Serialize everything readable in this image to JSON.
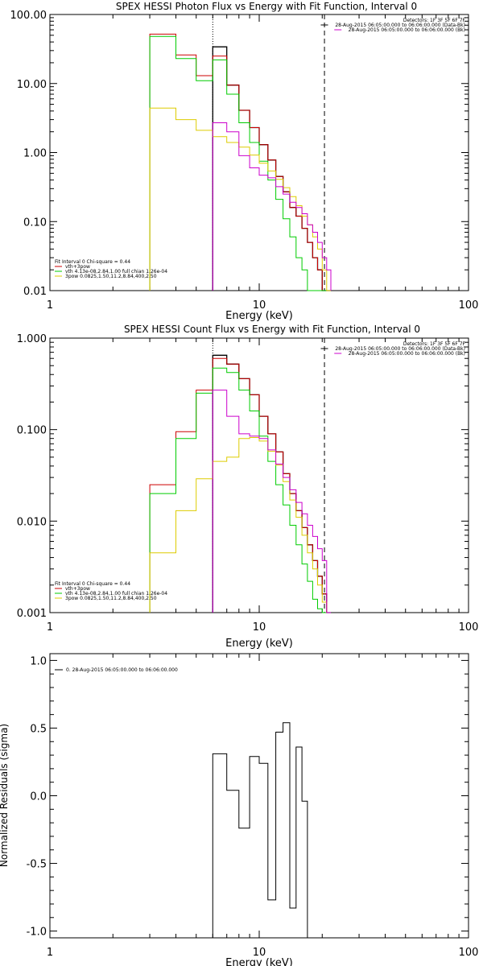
{
  "chart_data": [
    {
      "type": "line",
      "title": "SPEX HESSI Photon Flux vs Energy with Fit Function, Interval 0",
      "xlabel": "Energy (keV)",
      "ylabel": "",
      "xscale": "log",
      "yscale": "log",
      "xlim": [
        1,
        100
      ],
      "ylim": [
        0.01,
        100
      ],
      "x_ticks": [
        1,
        10,
        100
      ],
      "x_tick_labels": [
        "1",
        "10",
        "100"
      ],
      "y_ticks": [
        0.01,
        0.1,
        1,
        10,
        100
      ],
      "y_tick_labels": [
        "0.01",
        "0.10",
        "1.00",
        "10.00",
        "100.00"
      ],
      "ref_lines": [
        {
          "x": 6.0,
          "style": "dotted",
          "color": "#000000"
        },
        {
          "x": 20.5,
          "style": "dashed",
          "color": "#000000"
        },
        {
          "x": 6.0,
          "style": "solid",
          "color": "#cc00cc"
        }
      ],
      "series": [
        {
          "color": "#000000",
          "edges": [
            6,
            7,
            8,
            9,
            10,
            11,
            12,
            13,
            14,
            15,
            16,
            17,
            18,
            19,
            20,
            21,
            22
          ],
          "values": [
            34,
            9.5,
            4.1,
            2.3,
            1.3,
            0.78,
            0.45,
            0.27,
            0.16,
            0.12,
            0.08,
            0.05,
            0.03,
            0.02,
            0.01,
            0.01
          ]
        },
        {
          "color": "#cc0000",
          "edges": [
            3,
            4,
            5,
            6,
            7,
            8,
            9,
            10,
            11,
            12,
            13,
            14,
            15,
            16,
            17,
            18,
            19,
            20,
            21,
            22
          ],
          "values": [
            52,
            26,
            13,
            25,
            9.5,
            4.1,
            2.3,
            1.3,
            0.78,
            0.45,
            0.27,
            0.16,
            0.12,
            0.08,
            0.05,
            0.03,
            0.02,
            0.01,
            0.01
          ]
        },
        {
          "color": "#00cc00",
          "edges": [
            3,
            4,
            5,
            6,
            7,
            8,
            9,
            10,
            11,
            12,
            13,
            14,
            15,
            16,
            17,
            18,
            19,
            20,
            21,
            22
          ],
          "values": [
            48,
            23,
            11,
            22,
            7.0,
            2.7,
            1.4,
            0.75,
            0.4,
            0.21,
            0.11,
            0.06,
            0.03,
            0.02,
            0.01,
            0.01,
            0.01,
            0.01,
            0.01
          ]
        },
        {
          "color": "#ddcc00",
          "edges": [
            3,
            4,
            5,
            6,
            7,
            8,
            9,
            10,
            11,
            12,
            13,
            14,
            15,
            16,
            17,
            18,
            19,
            20,
            21,
            22
          ],
          "values": [
            4.4,
            3.0,
            2.1,
            1.7,
            1.4,
            1.2,
            0.92,
            0.7,
            0.54,
            0.41,
            0.31,
            0.23,
            0.17,
            0.12,
            0.09,
            0.06,
            0.04,
            0.02,
            0.01
          ]
        },
        {
          "color": "#cc00cc",
          "edges": [
            6,
            7,
            8,
            9,
            10,
            11,
            12,
            13,
            14,
            15,
            16,
            17,
            18,
            19,
            20,
            21,
            22
          ],
          "values": [
            2.7,
            2.0,
            0.9,
            0.6,
            0.47,
            0.43,
            0.32,
            0.25,
            0.19,
            0.16,
            0.13,
            0.09,
            0.07,
            0.05,
            0.03,
            0.02
          ]
        }
      ],
      "legend": [
        {
          "text": "Detectors: 1F 3F 5F 6F 7F",
          "color": "",
          "line": false
        },
        {
          "text": "28-Aug-2015 06:05:00.000 to 06:06:00.000 (Data-Bk)",
          "color": "#000000",
          "line": true
        },
        {
          "text": "28-Aug-2015 06:05:00.000 to 06:06:00.000 (Bk)",
          "color": "#cc00cc",
          "line": true
        }
      ],
      "legend_position": "top-right",
      "fit_legend": [
        {
          "text": "Fit Interval 0   Chi-square = 0.44",
          "color": "",
          "line": false
        },
        {
          "text": "vth+3pow",
          "color": "#cc0000",
          "line": true
        },
        {
          "text": "vth 4.13e-08,2.84,1.00  full chian 1.26e-04",
          "color": "#00cc00",
          "line": true
        },
        {
          "text": "3pow 0.0825,1.50,11.2,8.84,400,2.50",
          "color": "#ddcc00",
          "line": true
        }
      ],
      "fit_legend_position": "bottom-left"
    },
    {
      "type": "line",
      "title": "SPEX HESSI Count Flux vs Energy with Fit Function, Interval 0",
      "xlabel": "Energy (keV)",
      "ylabel": "",
      "xscale": "log",
      "yscale": "log",
      "xlim": [
        1,
        100
      ],
      "ylim": [
        0.001,
        1
      ],
      "x_ticks": [
        1,
        10,
        100
      ],
      "x_tick_labels": [
        "1",
        "10",
        "100"
      ],
      "y_ticks": [
        0.001,
        0.01,
        0.1,
        1
      ],
      "y_tick_labels": [
        "0.001",
        "0.010",
        "0.100",
        "1.000"
      ],
      "ref_lines": [
        {
          "x": 6.0,
          "style": "dotted",
          "color": "#000000"
        },
        {
          "x": 20.5,
          "style": "dashed",
          "color": "#000000"
        },
        {
          "x": 6.0,
          "style": "solid",
          "color": "#cc00cc"
        }
      ],
      "series": [
        {
          "color": "#000000",
          "edges": [
            6,
            7,
            8,
            9,
            10,
            11,
            12,
            13,
            14,
            15,
            16,
            17,
            18,
            19,
            20,
            21,
            22
          ],
          "values": [
            0.65,
            0.52,
            0.36,
            0.24,
            0.14,
            0.09,
            0.057,
            0.033,
            0.02,
            0.013,
            0.0085,
            0.0055,
            0.0037,
            0.0025,
            0.0016,
            0.001
          ]
        },
        {
          "color": "#cc0000",
          "edges": [
            3,
            4,
            5,
            6,
            7,
            8,
            9,
            10,
            11,
            12,
            13,
            14,
            15,
            16,
            17,
            18,
            19,
            20,
            21,
            22
          ],
          "values": [
            0.025,
            0.095,
            0.27,
            0.6,
            0.52,
            0.36,
            0.24,
            0.14,
            0.09,
            0.057,
            0.033,
            0.02,
            0.013,
            0.0085,
            0.0055,
            0.0037,
            0.0025,
            0.0016,
            0.001
          ]
        },
        {
          "color": "#00cc00",
          "edges": [
            3,
            4,
            5,
            6,
            7,
            8,
            9,
            10,
            11,
            12,
            13,
            14,
            15,
            16,
            17,
            18,
            19,
            20,
            21,
            22
          ],
          "values": [
            0.02,
            0.08,
            0.25,
            0.47,
            0.42,
            0.27,
            0.16,
            0.085,
            0.045,
            0.025,
            0.015,
            0.009,
            0.0055,
            0.0034,
            0.0022,
            0.0014,
            0.0011,
            0.001,
            0.001
          ]
        },
        {
          "color": "#ddcc00",
          "edges": [
            3,
            4,
            5,
            6,
            7,
            8,
            9,
            10,
            11,
            12,
            13,
            14,
            15,
            16,
            17,
            18,
            19,
            20,
            21,
            22
          ],
          "values": [
            0.0045,
            0.013,
            0.029,
            0.045,
            0.05,
            0.08,
            0.082,
            0.075,
            0.058,
            0.041,
            0.027,
            0.017,
            0.011,
            0.007,
            0.0045,
            0.003,
            0.002,
            0.0013,
            0.001
          ]
        },
        {
          "color": "#cc00cc",
          "edges": [
            6,
            7,
            8,
            9,
            10,
            11,
            12,
            13,
            14,
            15,
            16,
            17,
            18,
            19,
            20,
            21,
            22
          ],
          "values": [
            0.27,
            0.14,
            0.09,
            0.085,
            0.08,
            0.06,
            0.042,
            0.03,
            0.022,
            0.016,
            0.012,
            0.009,
            0.0068,
            0.005,
            0.0037,
            0.001
          ]
        }
      ],
      "legend": [
        {
          "text": "Detectors: 1F 3F 5F 6F 7F",
          "color": "",
          "line": false
        },
        {
          "text": "28-Aug-2015 06:05:00.000 to 06:06:00.000 (Data-Bk)",
          "color": "#000000",
          "line": true
        },
        {
          "text": "28-Aug-2015 06:05:00.000 to 06:06:00.000 (Bk)",
          "color": "#cc00cc",
          "line": true
        }
      ],
      "legend_position": "top-right",
      "fit_legend": [
        {
          "text": "Fit Interval 0   Chi-square = 0.44",
          "color": "",
          "line": false
        },
        {
          "text": "vth+3pow",
          "color": "#cc0000",
          "line": true
        },
        {
          "text": "vth 4.13e-08,2.84,1.00  full chian 1.26e-04",
          "color": "#00cc00",
          "line": true
        },
        {
          "text": "3pow 0.0825,1.50,11.2,8.84,400,2.50",
          "color": "#ddcc00",
          "line": true
        }
      ],
      "fit_legend_position": "bottom-left"
    },
    {
      "type": "line",
      "title": "",
      "xlabel": "Energy (keV)",
      "ylabel": "Normalized Residuals (sigma)",
      "xscale": "log",
      "yscale": "linear",
      "xlim": [
        1,
        100
      ],
      "ylim": [
        -1.05,
        1.05
      ],
      "x_ticks": [
        1,
        10,
        100
      ],
      "x_tick_labels": [
        "1",
        "10",
        "100"
      ],
      "y_ticks": [
        -1,
        -0.5,
        0,
        0.5,
        1
      ],
      "y_tick_labels": [
        "-1.0",
        "-0.5",
        "0.0",
        "0.5",
        "1.0"
      ],
      "ref_lines": [],
      "series": [
        {
          "color": "#000000",
          "edges": [
            6,
            7,
            8,
            9,
            10,
            11,
            12,
            13,
            14,
            15,
            16,
            17,
            18,
            19,
            20
          ],
          "values": [
            0.31,
            0.04,
            -0.24,
            0.29,
            0.24,
            -0.77,
            0.47,
            0.54,
            -0.83,
            0.36,
            -0.04,
            -1.05,
            -1.05,
            -1.05
          ]
        }
      ],
      "legend": [
        {
          "text": "0. 28-Aug-2015 06:05:00.000 to 06:06:00.000",
          "color": "#000000",
          "line": true
        }
      ],
      "legend_position": "top-left",
      "fit_legend": [],
      "fit_legend_position": ""
    }
  ]
}
